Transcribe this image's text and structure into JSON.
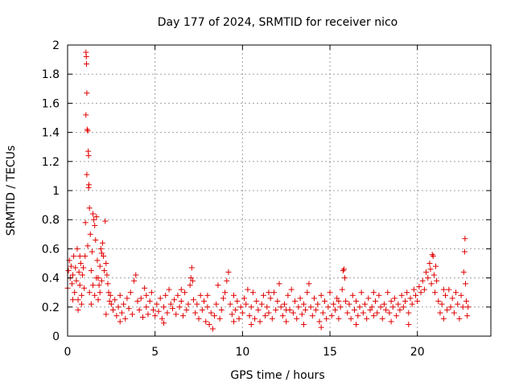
{
  "chart_data": {
    "type": "scatter",
    "title": "Day 177 of 2024, SRMTID for receiver nico",
    "xlabel": "GPS time / hours",
    "ylabel": "SRMTID / TECUs",
    "xlim": [
      0,
      24.2
    ],
    "ylim": [
      0,
      2
    ],
    "xticks": [
      0,
      5,
      10,
      15,
      20
    ],
    "xtick_labels": [
      "0",
      "5",
      "10",
      "15",
      "20"
    ],
    "yticks": [
      0,
      0.2,
      0.4,
      0.6,
      0.8,
      1,
      1.2,
      1.4,
      1.6,
      1.8,
      2
    ],
    "ytick_labels": [
      "0",
      "0.2",
      "0.4",
      "0.6",
      "0.8",
      "1",
      "1.2",
      "1.4",
      "1.6",
      "1.8",
      "2"
    ],
    "grid": true,
    "marker": "plus",
    "color": "#e00000",
    "series": [
      {
        "name": "SRMTID",
        "points": [
          [
            0.0,
            0.33
          ],
          [
            0.05,
            0.45
          ],
          [
            0.1,
            0.52
          ],
          [
            0.15,
            0.4
          ],
          [
            0.2,
            0.48
          ],
          [
            0.25,
            0.36
          ],
          [
            0.3,
            0.42
          ],
          [
            0.35,
            0.55
          ],
          [
            0.4,
            0.3
          ],
          [
            0.45,
            0.47
          ],
          [
            0.5,
            0.38
          ],
          [
            0.55,
            0.6
          ],
          [
            0.6,
            0.25
          ],
          [
            0.65,
            0.44
          ],
          [
            0.7,
            0.35
          ],
          [
            0.75,
            0.5
          ],
          [
            0.8,
            0.28
          ],
          [
            0.85,
            0.42
          ],
          [
            0.9,
            0.47
          ],
          [
            0.95,
            0.33
          ],
          [
            1.0,
            0.55
          ],
          [
            1.02,
            0.78
          ],
          [
            1.05,
            1.95
          ],
          [
            1.07,
            1.92
          ],
          [
            1.08,
            1.87
          ],
          [
            1.1,
            1.67
          ],
          [
            1.05,
            1.52
          ],
          [
            1.12,
            1.42
          ],
          [
            1.15,
            1.41
          ],
          [
            1.1,
            1.11
          ],
          [
            1.18,
            1.27
          ],
          [
            1.2,
            1.24
          ],
          [
            1.22,
            1.04
          ],
          [
            1.2,
            1.02
          ],
          [
            1.25,
            0.88
          ],
          [
            1.15,
            0.62
          ],
          [
            1.3,
            0.7
          ],
          [
            1.35,
            0.45
          ],
          [
            1.4,
            0.58
          ],
          [
            1.45,
            0.84
          ],
          [
            1.5,
            0.8
          ],
          [
            1.55,
            0.76
          ],
          [
            1.6,
            0.66
          ],
          [
            1.65,
            0.82
          ],
          [
            1.7,
            0.52
          ],
          [
            1.75,
            0.4
          ],
          [
            1.8,
            0.35
          ],
          [
            1.85,
            0.48
          ],
          [
            1.9,
            0.6
          ],
          [
            1.95,
            0.57
          ],
          [
            2.0,
            0.64
          ],
          [
            2.05,
            0.55
          ],
          [
            2.1,
            0.45
          ],
          [
            2.15,
            0.79
          ],
          [
            2.2,
            0.5
          ],
          [
            2.25,
            0.42
          ],
          [
            2.3,
            0.36
          ],
          [
            2.35,
            0.3
          ],
          [
            2.4,
            0.24
          ],
          [
            2.45,
            0.28
          ],
          [
            1.25,
            0.3
          ],
          [
            1.35,
            0.22
          ],
          [
            1.45,
            0.35
          ],
          [
            1.55,
            0.28
          ],
          [
            1.65,
            0.4
          ],
          [
            1.75,
            0.25
          ],
          [
            1.85,
            0.3
          ],
          [
            1.95,
            0.38
          ],
          [
            0.6,
            0.18
          ],
          [
            0.8,
            0.22
          ],
          [
            2.5,
            0.22
          ],
          [
            2.6,
            0.18
          ],
          [
            2.7,
            0.25
          ],
          [
            2.8,
            0.14
          ],
          [
            2.9,
            0.2
          ],
          [
            3.0,
            0.28
          ],
          [
            3.1,
            0.16
          ],
          [
            3.2,
            0.22
          ],
          [
            3.3,
            0.12
          ],
          [
            3.4,
            0.26
          ],
          [
            3.5,
            0.19
          ],
          [
            3.6,
            0.3
          ],
          [
            3.7,
            0.15
          ],
          [
            3.8,
            0.38
          ],
          [
            3.9,
            0.42
          ],
          [
            4.0,
            0.24
          ],
          [
            4.1,
            0.18
          ],
          [
            4.2,
            0.26
          ],
          [
            4.3,
            0.13
          ],
          [
            4.4,
            0.33
          ],
          [
            4.5,
            0.2
          ],
          [
            4.6,
            0.15
          ],
          [
            4.7,
            0.24
          ],
          [
            4.8,
            0.3
          ],
          [
            4.9,
            0.18
          ],
          [
            5.0,
            0.14
          ],
          [
            5.1,
            0.22
          ],
          [
            5.2,
            0.17
          ],
          [
            5.3,
            0.26
          ],
          [
            5.4,
            0.12
          ],
          [
            5.5,
            0.2
          ],
          [
            5.6,
            0.28
          ],
          [
            5.7,
            0.16
          ],
          [
            5.8,
            0.32
          ],
          [
            5.9,
            0.22
          ],
          [
            6.0,
            0.19
          ],
          [
            6.1,
            0.25
          ],
          [
            6.2,
            0.15
          ],
          [
            6.3,
            0.28
          ],
          [
            6.4,
            0.2
          ],
          [
            6.5,
            0.24
          ],
          [
            6.6,
            0.14
          ],
          [
            6.7,
            0.3
          ],
          [
            6.8,
            0.18
          ],
          [
            6.9,
            0.22
          ],
          [
            7.0,
            0.35
          ],
          [
            7.05,
            0.4
          ],
          [
            7.1,
            0.47
          ],
          [
            7.15,
            0.38
          ],
          [
            7.2,
            0.25
          ],
          [
            7.3,
            0.16
          ],
          [
            7.4,
            0.22
          ],
          [
            7.5,
            0.12
          ],
          [
            7.6,
            0.28
          ],
          [
            7.7,
            0.18
          ],
          [
            7.8,
            0.24
          ],
          [
            7.9,
            0.1
          ],
          [
            8.0,
            0.2
          ],
          [
            8.1,
            0.08
          ],
          [
            8.2,
            0.16
          ],
          [
            8.3,
            0.05
          ],
          [
            8.4,
            0.14
          ],
          [
            8.5,
            0.22
          ],
          [
            8.6,
            0.35
          ],
          [
            8.7,
            0.12
          ],
          [
            8.8,
            0.18
          ],
          [
            8.9,
            0.26
          ],
          [
            9.0,
            0.3
          ],
          [
            9.1,
            0.38
          ],
          [
            9.2,
            0.44
          ],
          [
            9.3,
            0.22
          ],
          [
            9.4,
            0.15
          ],
          [
            9.5,
            0.28
          ],
          [
            9.6,
            0.18
          ],
          [
            9.7,
            0.24
          ],
          [
            9.8,
            0.12
          ],
          [
            9.9,
            0.2
          ],
          [
            10.0,
            0.16
          ],
          [
            10.1,
            0.26
          ],
          [
            10.2,
            0.22
          ],
          [
            10.3,
            0.32
          ],
          [
            10.4,
            0.14
          ],
          [
            10.5,
            0.2
          ],
          [
            10.6,
            0.3
          ],
          [
            10.7,
            0.12
          ],
          [
            10.8,
            0.24
          ],
          [
            10.9,
            0.18
          ],
          [
            11.0,
            0.1
          ],
          [
            11.1,
            0.22
          ],
          [
            11.2,
            0.28
          ],
          [
            11.3,
            0.14
          ],
          [
            11.4,
            0.2
          ],
          [
            11.5,
            0.16
          ],
          [
            11.6,
            0.26
          ],
          [
            11.7,
            0.12
          ],
          [
            11.8,
            0.3
          ],
          [
            11.9,
            0.18
          ],
          [
            12.0,
            0.24
          ],
          [
            12.1,
            0.36
          ],
          [
            12.2,
            0.2
          ],
          [
            12.3,
            0.14
          ],
          [
            12.4,
            0.22
          ],
          [
            12.5,
            0.1
          ],
          [
            12.6,
            0.28
          ],
          [
            12.7,
            0.18
          ],
          [
            12.8,
            0.32
          ],
          [
            12.9,
            0.16
          ],
          [
            13.0,
            0.24
          ],
          [
            13.1,
            0.12
          ],
          [
            13.2,
            0.2
          ],
          [
            13.3,
            0.26
          ],
          [
            13.4,
            0.15
          ],
          [
            13.5,
            0.22
          ],
          [
            13.6,
            0.18
          ],
          [
            13.7,
            0.3
          ],
          [
            13.8,
            0.36
          ],
          [
            13.9,
            0.2
          ],
          [
            14.0,
            0.14
          ],
          [
            14.1,
            0.26
          ],
          [
            14.2,
            0.18
          ],
          [
            14.3,
            0.22
          ],
          [
            14.4,
            0.1
          ],
          [
            14.5,
            0.28
          ],
          [
            14.6,
            0.16
          ],
          [
            14.7,
            0.24
          ],
          [
            14.8,
            0.12
          ],
          [
            14.9,
            0.2
          ],
          [
            15.0,
            0.3
          ],
          [
            15.1,
            0.14
          ],
          [
            15.2,
            0.22
          ],
          [
            15.3,
            0.18
          ],
          [
            15.4,
            0.26
          ],
          [
            15.5,
            0.12
          ],
          [
            15.6,
            0.2
          ],
          [
            15.7,
            0.32
          ],
          [
            15.75,
            0.45
          ],
          [
            15.8,
            0.46
          ],
          [
            15.85,
            0.4
          ],
          [
            15.9,
            0.24
          ],
          [
            16.0,
            0.16
          ],
          [
            16.1,
            0.22
          ],
          [
            16.2,
            0.12
          ],
          [
            16.3,
            0.28
          ],
          [
            16.4,
            0.18
          ],
          [
            16.5,
            0.24
          ],
          [
            16.6,
            0.14
          ],
          [
            16.7,
            0.2
          ],
          [
            16.8,
            0.3
          ],
          [
            16.9,
            0.16
          ],
          [
            17.0,
            0.22
          ],
          [
            17.1,
            0.12
          ],
          [
            17.2,
            0.26
          ],
          [
            17.3,
            0.18
          ],
          [
            17.4,
            0.2
          ],
          [
            17.5,
            0.14
          ],
          [
            17.6,
            0.24
          ],
          [
            17.7,
            0.16
          ],
          [
            17.8,
            0.28
          ],
          [
            17.9,
            0.2
          ],
          [
            18.0,
            0.12
          ],
          [
            18.1,
            0.22
          ],
          [
            18.2,
            0.18
          ],
          [
            18.3,
            0.3
          ],
          [
            18.4,
            0.16
          ],
          [
            18.5,
            0.24
          ],
          [
            18.6,
            0.2
          ],
          [
            18.7,
            0.26
          ],
          [
            18.8,
            0.14
          ],
          [
            18.9,
            0.22
          ],
          [
            19.0,
            0.18
          ],
          [
            19.1,
            0.28
          ],
          [
            19.2,
            0.2
          ],
          [
            19.3,
            0.24
          ],
          [
            19.4,
            0.3
          ],
          [
            19.5,
            0.16
          ],
          [
            19.6,
            0.26
          ],
          [
            19.7,
            0.22
          ],
          [
            19.8,
            0.32
          ],
          [
            19.9,
            0.28
          ],
          [
            20.0,
            0.24
          ],
          [
            20.1,
            0.34
          ],
          [
            20.2,
            0.3
          ],
          [
            20.3,
            0.38
          ],
          [
            20.4,
            0.32
          ],
          [
            20.5,
            0.44
          ],
          [
            20.6,
            0.4
          ],
          [
            20.7,
            0.5
          ],
          [
            20.75,
            0.46
          ],
          [
            20.8,
            0.36
          ],
          [
            20.85,
            0.56
          ],
          [
            20.9,
            0.55
          ],
          [
            20.95,
            0.42
          ],
          [
            21.0,
            0.3
          ],
          [
            21.05,
            0.48
          ],
          [
            21.1,
            0.38
          ],
          [
            21.2,
            0.24
          ],
          [
            21.3,
            0.16
          ],
          [
            21.4,
            0.22
          ],
          [
            21.5,
            0.12
          ],
          [
            21.6,
            0.28
          ],
          [
            21.7,
            0.18
          ],
          [
            21.8,
            0.32
          ],
          [
            21.9,
            0.2
          ],
          [
            22.0,
            0.26
          ],
          [
            22.1,
            0.16
          ],
          [
            22.2,
            0.3
          ],
          [
            22.3,
            0.22
          ],
          [
            22.4,
            0.12
          ],
          [
            22.5,
            0.28
          ],
          [
            22.6,
            0.2
          ],
          [
            22.65,
            0.44
          ],
          [
            22.7,
            0.58
          ],
          [
            22.72,
            0.67
          ],
          [
            22.75,
            0.36
          ],
          [
            22.8,
            0.24
          ],
          [
            22.85,
            0.14
          ],
          [
            22.9,
            0.2
          ],
          [
            0.3,
            0.25
          ],
          [
            0.7,
            0.55
          ],
          [
            2.2,
            0.15
          ],
          [
            3.0,
            0.1
          ],
          [
            4.5,
            0.28
          ],
          [
            5.5,
            0.09
          ],
          [
            6.5,
            0.32
          ],
          [
            8.0,
            0.28
          ],
          [
            9.5,
            0.1
          ],
          [
            10.5,
            0.08
          ],
          [
            11.5,
            0.3
          ],
          [
            12.5,
            0.18
          ],
          [
            13.5,
            0.08
          ],
          [
            14.5,
            0.06
          ],
          [
            15.5,
            0.24
          ],
          [
            16.5,
            0.08
          ],
          [
            17.5,
            0.3
          ],
          [
            18.5,
            0.1
          ],
          [
            19.5,
            0.08
          ],
          [
            21.5,
            0.32
          ]
        ]
      }
    ]
  }
}
